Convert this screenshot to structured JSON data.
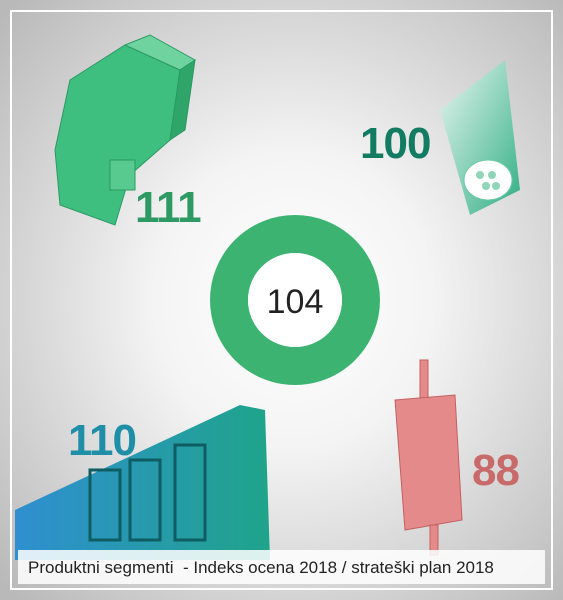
{
  "center": {
    "value": 104
  },
  "segments": [
    {
      "value": 111
    },
    {
      "value": 100
    },
    {
      "value": 110
    },
    {
      "value": 88
    }
  ],
  "caption": "Produktni segmenti  - Indeks ocena 2018 / strateški plan 2018"
}
